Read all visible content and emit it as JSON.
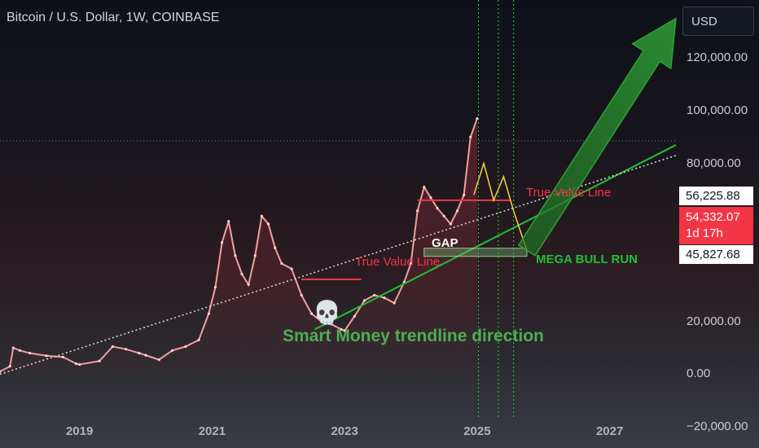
{
  "header": {
    "title": "Bitcoin / U.S. Dollar, 1W, COINBASE",
    "currency": "USD"
  },
  "price_tags": {
    "upper": "56,225.88",
    "current": "54,332.07",
    "countdown": "1d 17h",
    "lower": "45,827.68"
  },
  "annotations": {
    "true_value_line_1": "True Value Line",
    "true_value_line_2": "True Value Line",
    "gap": "GAP",
    "mega_bull_run": "MEGA BULL RUN",
    "smart_money": "Smart Money trendline direction",
    "skull_icon": "skull-icon"
  },
  "colors": {
    "background": "#131722",
    "annotation_red": "#f23645",
    "annotation_green": "#22c032",
    "smart_money_green": "#4caf50",
    "price_tag_red": "#f23645"
  },
  "chart_data": {
    "type": "line",
    "title": "Bitcoin / U.S. Dollar, 1W, COINBASE",
    "xlabel": "",
    "ylabel": "",
    "y_tick_labels": [
      "120,000.00",
      "100,000.00",
      "80,000.00",
      "20,000.00",
      "0.00",
      "−20,000.00"
    ],
    "x_tick_labels": [
      "2019",
      "2021",
      "2023",
      "2025",
      "2027"
    ],
    "xlim": [
      2017.8,
      2028.0
    ],
    "ylim": [
      -28000,
      142000
    ],
    "grid": false,
    "series": [
      {
        "x": [
          2017.8,
          2017.95,
          2018.0,
          2018.1,
          2018.25,
          2018.5,
          2018.75,
          2018.95,
          2019.0,
          2019.3,
          2019.5,
          2019.7,
          2019.9,
          2020.0,
          2020.2,
          2020.4,
          2020.6,
          2020.8,
          2020.95,
          2021.05,
          2021.15,
          2021.25,
          2021.35,
          2021.45,
          2021.55,
          2021.65,
          2021.75,
          2021.85,
          2021.95,
          2022.05,
          2022.2,
          2022.35,
          2022.5,
          2022.65,
          2022.8,
          2022.95,
          2023.0,
          2023.15,
          2023.3,
          2023.45,
          2023.6,
          2023.75,
          2023.9,
          2024.0,
          2024.1,
          2024.2,
          2024.3,
          2024.4,
          2024.5,
          2024.6,
          2024.7,
          2024.8,
          2024.9,
          2025.0
        ],
        "y": [
          1000,
          3000,
          10000,
          9000,
          8000,
          7000,
          6500,
          4000,
          3700,
          5000,
          10500,
          9500,
          8000,
          7200,
          5500,
          9000,
          10500,
          13000,
          23000,
          33000,
          50000,
          58000,
          45000,
          38000,
          34000,
          45000,
          60000,
          57000,
          48000,
          42000,
          40000,
          30000,
          23000,
          20000,
          19000,
          17000,
          16500,
          22000,
          28000,
          30000,
          29000,
          27000,
          35000,
          42000,
          62000,
          71000,
          67000,
          63000,
          60000,
          57000,
          62000,
          68000,
          90000,
          97000
        ]
      }
    ],
    "trendlines": [
      {
        "name": "True Value Line",
        "x": [
          2022.35,
          2023.25
        ],
        "y": [
          36000,
          36000
        ]
      },
      {
        "name": "True Value Line",
        "x": [
          2024.1,
          2025.5
        ],
        "y": [
          66000,
          66000
        ]
      },
      {
        "name": "Smart Money trendline direction",
        "x": [
          2022.55,
          2028.0
        ],
        "y": [
          17000,
          87000
        ]
      },
      {
        "name": "",
        "x": [
          2017.8,
          2028.0
        ],
        "y": [
          0,
          83000
        ]
      }
    ],
    "gap_zone": {
      "x": [
        2024.2,
        2025.75
      ],
      "y": [
        45800,
        47800
      ]
    },
    "bull_run_arrow": {
      "x": [
        2025.75,
        2028.0
      ],
      "y": [
        47000,
        135000
      ]
    },
    "projection": {
      "x": [
        2024.95,
        2025.1,
        2025.25,
        2025.4,
        2025.55,
        2025.75
      ],
      "y": [
        68000,
        80000,
        66000,
        75000,
        62000,
        47000
      ]
    },
    "vertical_markers_year": [
      2025.02,
      2025.32,
      2025.55
    ]
  }
}
